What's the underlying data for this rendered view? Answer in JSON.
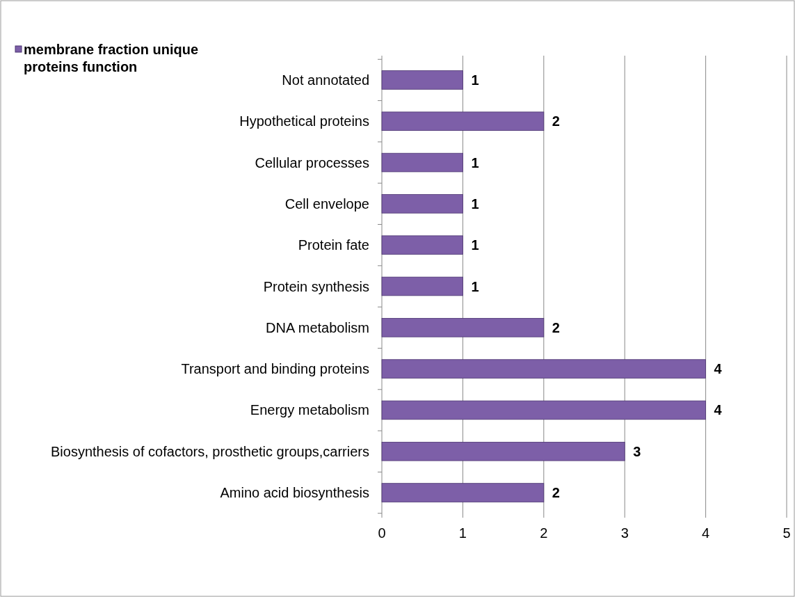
{
  "chart_data": {
    "type": "bar",
    "orientation": "horizontal",
    "categories": [
      "Not annotated",
      "Hypothetical proteins",
      "Cellular processes",
      "Cell envelope",
      "Protein fate",
      "Protein synthesis",
      "DNA metabolism",
      "Transport and binding proteins",
      "Energy metabolism",
      "Biosynthesis of cofactors, prosthetic groups,carriers",
      "Amino acid biosynthesis"
    ],
    "series": [
      {
        "name": "membrane fraction unique proteins function",
        "color": "#7d5fa8",
        "values": [
          1,
          2,
          1,
          1,
          1,
          1,
          2,
          4,
          4,
          3,
          2
        ]
      }
    ],
    "xlim": [
      0,
      5
    ],
    "xticks": [
      0,
      1,
      2,
      3,
      4,
      5
    ],
    "grid": "x",
    "legend": "top left",
    "data_labels": true
  }
}
